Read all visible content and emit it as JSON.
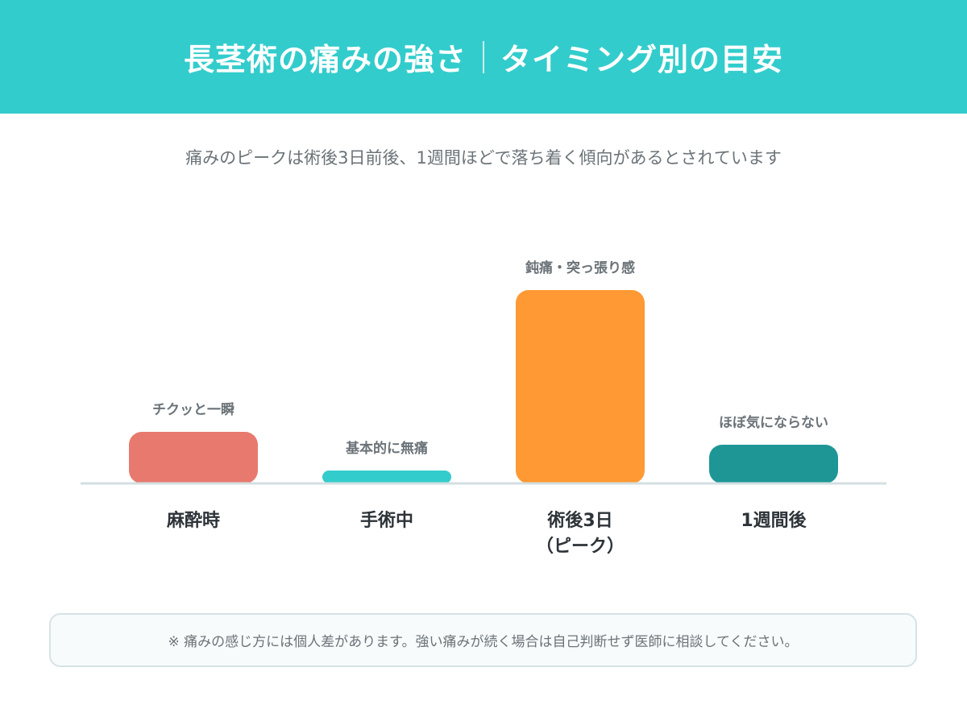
{
  "header": {
    "title_main": "長茎術の痛みの強さ",
    "title_sub": "タイミング別の目安",
    "background": "#33cccc"
  },
  "subtitle": "痛みのピークは術後3日前後、1週間ほどで落ち着く傾向があるとされています",
  "chart_data": {
    "type": "bar",
    "categories": [
      [
        "麻酔時"
      ],
      [
        "手術中"
      ],
      [
        "術後3日",
        "（ピーク）"
      ],
      [
        "1週間後"
      ]
    ],
    "values": [
      20,
      5,
      75,
      15
    ],
    "annotations": [
      "チクッと一瞬",
      "基本的に無痛",
      "鈍痛・突っ張り感",
      "ほぼ気にならない"
    ],
    "colors": [
      "#e8796e",
      "#33cccc",
      "#ff9933",
      "#1e9696"
    ],
    "ylim": [
      0,
      100
    ],
    "grid": false,
    "baseline_color": "#d3dfe1"
  },
  "note": "※ 痛みの感じ方には個人差があります。強い痛みが続く場合は自己判断せず医師に相談してください。"
}
